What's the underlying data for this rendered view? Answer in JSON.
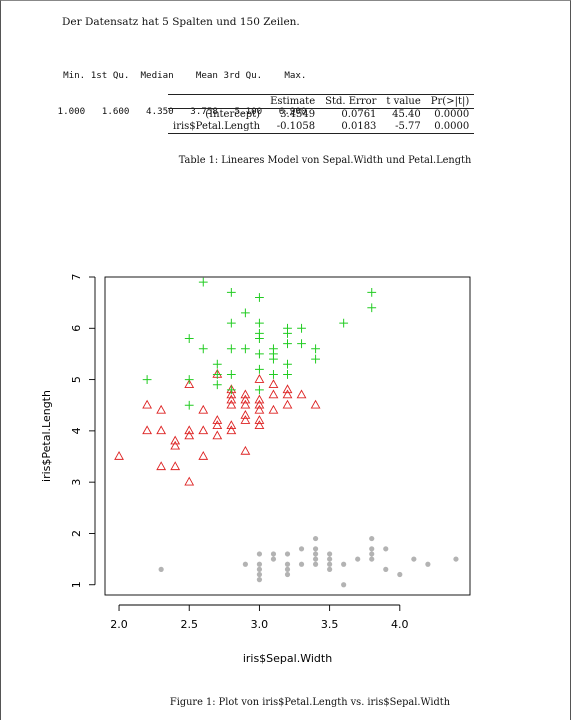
{
  "intro_text": "Der Datensatz hat 5 Spalten und 150 Zeilen.",
  "summary": {
    "headers": [
      "Min.",
      "1st Qu.",
      "Median",
      "Mean",
      "3rd Qu.",
      "Max."
    ],
    "values": [
      "1.000",
      "1.600",
      "4.350",
      "3.758",
      "5.100",
      "6.900"
    ]
  },
  "regression_table": {
    "columns": [
      "Estimate",
      "Std. Error",
      "t value",
      "Pr(>|t|)"
    ],
    "rows": [
      {
        "label": "(Intercept)",
        "cells": [
          "3.4549",
          "0.0761",
          "45.40",
          "0.0000"
        ]
      },
      {
        "label": "iris$Petal.Length",
        "cells": [
          "-0.1058",
          "0.0183",
          "-5.77",
          "0.0000"
        ]
      }
    ],
    "caption": "Table 1: Lineares Model von Sepal.Width und Petal.Length"
  },
  "figure_caption": "Figure 1: Plot von iris$Petal.Length vs. iris$Sepal.Width",
  "chart_data": {
    "type": "scatter",
    "xlabel": "iris$Sepal.Width",
    "ylabel": "iris$Petal.Length",
    "xlim": [
      1.9,
      4.5
    ],
    "ylim": [
      0.8,
      7.0
    ],
    "xticks": [
      "2.0",
      "2.5",
      "3.0",
      "3.5",
      "4.0"
    ],
    "yticks": [
      "1",
      "2",
      "3",
      "4",
      "5",
      "6",
      "7"
    ],
    "grid": false,
    "series": [
      {
        "marker": "circle",
        "color": "#b3b3b3",
        "points": [
          [
            2.3,
            1.3
          ],
          [
            2.9,
            1.4
          ],
          [
            3.0,
            1.4
          ],
          [
            3.0,
            1.3
          ],
          [
            3.0,
            1.2
          ],
          [
            3.0,
            1.6
          ],
          [
            3.0,
            1.1
          ],
          [
            3.1,
            1.5
          ],
          [
            3.1,
            1.6
          ],
          [
            3.2,
            1.4
          ],
          [
            3.2,
            1.3
          ],
          [
            3.2,
            1.2
          ],
          [
            3.2,
            1.6
          ],
          [
            3.3,
            1.4
          ],
          [
            3.3,
            1.7
          ],
          [
            3.4,
            1.4
          ],
          [
            3.4,
            1.5
          ],
          [
            3.4,
            1.6
          ],
          [
            3.4,
            1.7
          ],
          [
            3.4,
            1.9
          ],
          [
            3.5,
            1.3
          ],
          [
            3.5,
            1.4
          ],
          [
            3.5,
            1.5
          ],
          [
            3.5,
            1.6
          ],
          [
            3.6,
            1.0
          ],
          [
            3.6,
            1.4
          ],
          [
            3.7,
            1.5
          ],
          [
            3.8,
            1.5
          ],
          [
            3.8,
            1.6
          ],
          [
            3.8,
            1.7
          ],
          [
            3.8,
            1.9
          ],
          [
            3.9,
            1.3
          ],
          [
            3.9,
            1.7
          ],
          [
            4.0,
            1.2
          ],
          [
            4.1,
            1.5
          ],
          [
            4.2,
            1.4
          ],
          [
            4.4,
            1.5
          ]
        ]
      },
      {
        "marker": "triangle",
        "color": "#dd2222",
        "points": [
          [
            2.0,
            3.5
          ],
          [
            2.2,
            4.0
          ],
          [
            2.2,
            4.5
          ],
          [
            2.3,
            3.3
          ],
          [
            2.3,
            4.0
          ],
          [
            2.3,
            4.4
          ],
          [
            2.4,
            3.3
          ],
          [
            2.4,
            3.7
          ],
          [
            2.4,
            3.8
          ],
          [
            2.5,
            3.0
          ],
          [
            2.5,
            3.9
          ],
          [
            2.5,
            4.0
          ],
          [
            2.5,
            4.9
          ],
          [
            2.6,
            3.5
          ],
          [
            2.6,
            4.0
          ],
          [
            2.6,
            4.4
          ],
          [
            2.7,
            3.9
          ],
          [
            2.7,
            4.1
          ],
          [
            2.7,
            4.2
          ],
          [
            2.7,
            5.1
          ],
          [
            2.8,
            4.0
          ],
          [
            2.8,
            4.1
          ],
          [
            2.8,
            4.5
          ],
          [
            2.8,
            4.6
          ],
          [
            2.8,
            4.7
          ],
          [
            2.8,
            4.8
          ],
          [
            2.9,
            3.6
          ],
          [
            2.9,
            4.2
          ],
          [
            2.9,
            4.3
          ],
          [
            2.9,
            4.5
          ],
          [
            2.9,
            4.6
          ],
          [
            2.9,
            4.7
          ],
          [
            3.0,
            4.1
          ],
          [
            3.0,
            4.2
          ],
          [
            3.0,
            4.4
          ],
          [
            3.0,
            4.5
          ],
          [
            3.0,
            4.6
          ],
          [
            3.0,
            5.0
          ],
          [
            3.1,
            4.4
          ],
          [
            3.1,
            4.7
          ],
          [
            3.1,
            4.9
          ],
          [
            3.2,
            4.5
          ],
          [
            3.2,
            4.7
          ],
          [
            3.2,
            4.8
          ],
          [
            3.3,
            4.7
          ],
          [
            3.4,
            4.5
          ]
        ]
      },
      {
        "marker": "plus",
        "color": "#22cc22",
        "points": [
          [
            2.2,
            5.0
          ],
          [
            2.5,
            4.5
          ],
          [
            2.5,
            5.0
          ],
          [
            2.5,
            5.8
          ],
          [
            2.6,
            5.6
          ],
          [
            2.6,
            6.9
          ],
          [
            2.7,
            4.9
          ],
          [
            2.7,
            5.1
          ],
          [
            2.7,
            5.3
          ],
          [
            2.8,
            4.8
          ],
          [
            2.8,
            5.1
          ],
          [
            2.8,
            5.6
          ],
          [
            2.8,
            6.1
          ],
          [
            2.8,
            6.7
          ],
          [
            2.9,
            5.6
          ],
          [
            2.9,
            6.3
          ],
          [
            3.0,
            4.8
          ],
          [
            3.0,
            5.2
          ],
          [
            3.0,
            5.5
          ],
          [
            3.0,
            5.8
          ],
          [
            3.0,
            5.9
          ],
          [
            3.0,
            6.1
          ],
          [
            3.0,
            6.6
          ],
          [
            3.1,
            5.1
          ],
          [
            3.1,
            5.4
          ],
          [
            3.1,
            5.5
          ],
          [
            3.1,
            5.6
          ],
          [
            3.2,
            5.1
          ],
          [
            3.2,
            5.3
          ],
          [
            3.2,
            5.7
          ],
          [
            3.2,
            5.9
          ],
          [
            3.2,
            6.0
          ],
          [
            3.3,
            5.7
          ],
          [
            3.3,
            6.0
          ],
          [
            3.4,
            5.4
          ],
          [
            3.4,
            5.6
          ],
          [
            3.6,
            6.1
          ],
          [
            3.8,
            6.4
          ],
          [
            3.8,
            6.7
          ]
        ]
      }
    ]
  }
}
